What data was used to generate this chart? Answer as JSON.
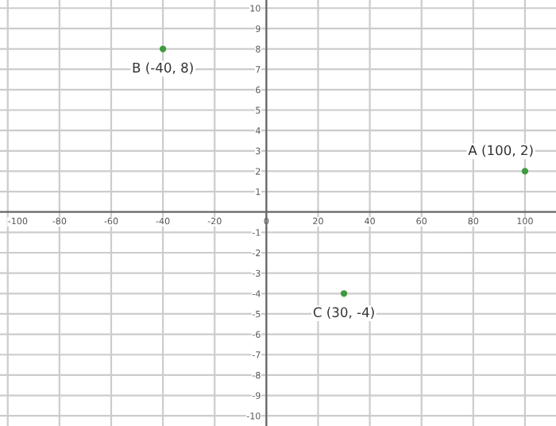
{
  "chart_data": {
    "type": "scatter",
    "x": [
      100,
      -40,
      30
    ],
    "values": [
      2,
      8,
      -4
    ],
    "color": "#3f9a3f",
    "marker": "circle",
    "xlim": [
      -103,
      112
    ],
    "ylim": [
      -10.5,
      10.4
    ],
    "xticks": [
      -100,
      -80,
      -60,
      -40,
      -20,
      0,
      20,
      40,
      60,
      80,
      100
    ],
    "yticks": [
      -10,
      -9,
      -8,
      -7,
      -6,
      -5,
      -4,
      -3,
      -2,
      -1,
      1,
      2,
      3,
      4,
      5,
      6,
      7,
      8,
      9,
      10
    ],
    "grid": true,
    "annotations": [
      {
        "text": "A (100, 2)",
        "x": 100,
        "y": 2
      },
      {
        "text": "B (-40, 8)",
        "x": -40,
        "y": 8
      },
      {
        "text": "C (30, -4)",
        "x": 30,
        "y": -4
      }
    ]
  }
}
